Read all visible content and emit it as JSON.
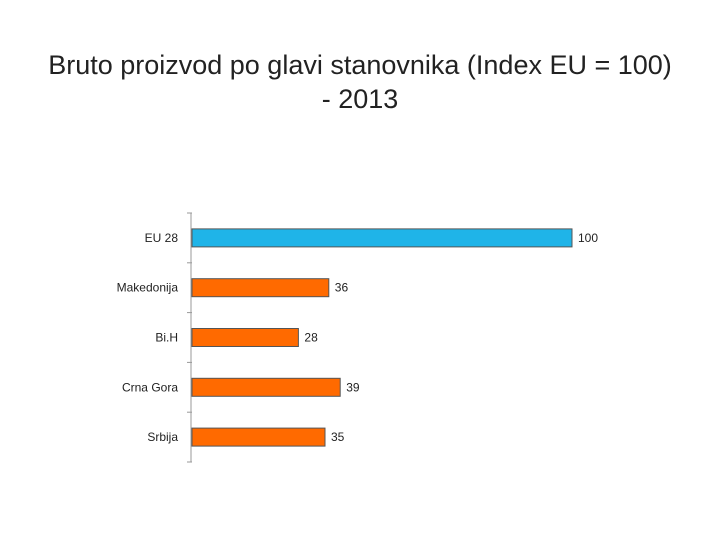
{
  "slide": {
    "title": "Bruto proizvod po glavi stanovnika (Index EU = 100) - 2013"
  },
  "chart_data": {
    "type": "bar",
    "orientation": "horizontal",
    "categories": [
      "EU 28",
      "Makedonija",
      "Bi.H",
      "Crna Gora",
      "Srbija"
    ],
    "values": [
      100,
      36,
      28,
      39,
      35
    ],
    "value_labels": [
      "100",
      "36",
      "28",
      "39",
      "35"
    ],
    "colors": [
      "#1fb4e8",
      "#ff6a00",
      "#ff6a00",
      "#ff6a00",
      "#ff6a00"
    ],
    "xlim": [
      0,
      100
    ],
    "grid": false,
    "legend": "none"
  }
}
